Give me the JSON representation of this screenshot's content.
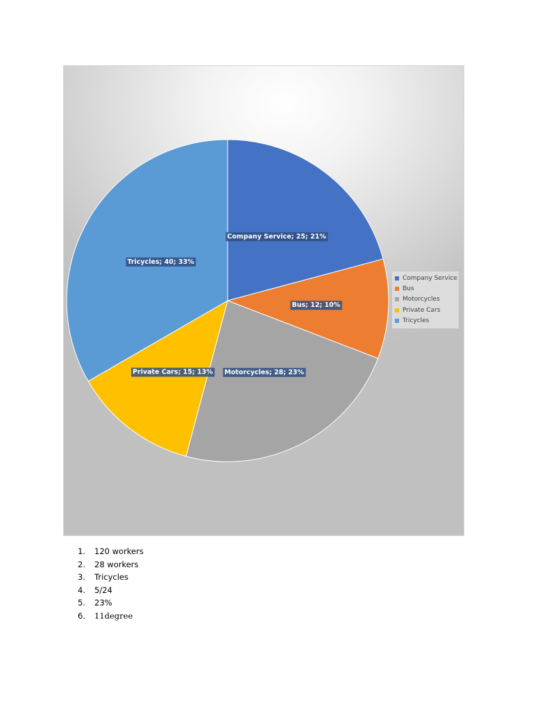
{
  "chart_data": {
    "type": "pie",
    "title": "",
    "categories": [
      "Company Service",
      "Bus",
      "Motorcycles",
      "Private Cars",
      "Tricycles"
    ],
    "values": [
      25,
      12,
      28,
      15,
      40
    ],
    "data_labels": [
      "Company Service; 25; 21%",
      "Bus; 12; 10%",
      "Motorcycles; 28; 23%",
      "Private Cars; 15; 13%",
      "Tricycles; 40; 33%"
    ],
    "colors": [
      "#4472c4",
      "#ed7d31",
      "#a5a5a5",
      "#ffc000",
      "#5b9bd5"
    ],
    "start_angle": "12 o'clock",
    "direction": "clockwise",
    "legend": {
      "placement": "right",
      "entries": [
        "Company Service",
        "Bus",
        "Motorcycles",
        "Private Cars",
        "Tricycles"
      ]
    }
  },
  "answers": [
    {
      "number": "1.",
      "text": "120 workers"
    },
    {
      "number": "2.",
      "text": "28 workers"
    },
    {
      "number": "3.",
      "text": "Tricycles"
    },
    {
      "number": "4.",
      "text": "5/24"
    },
    {
      "number": "5.",
      "text": "23%"
    },
    {
      "number": "6.",
      "text": "11degree"
    }
  ]
}
